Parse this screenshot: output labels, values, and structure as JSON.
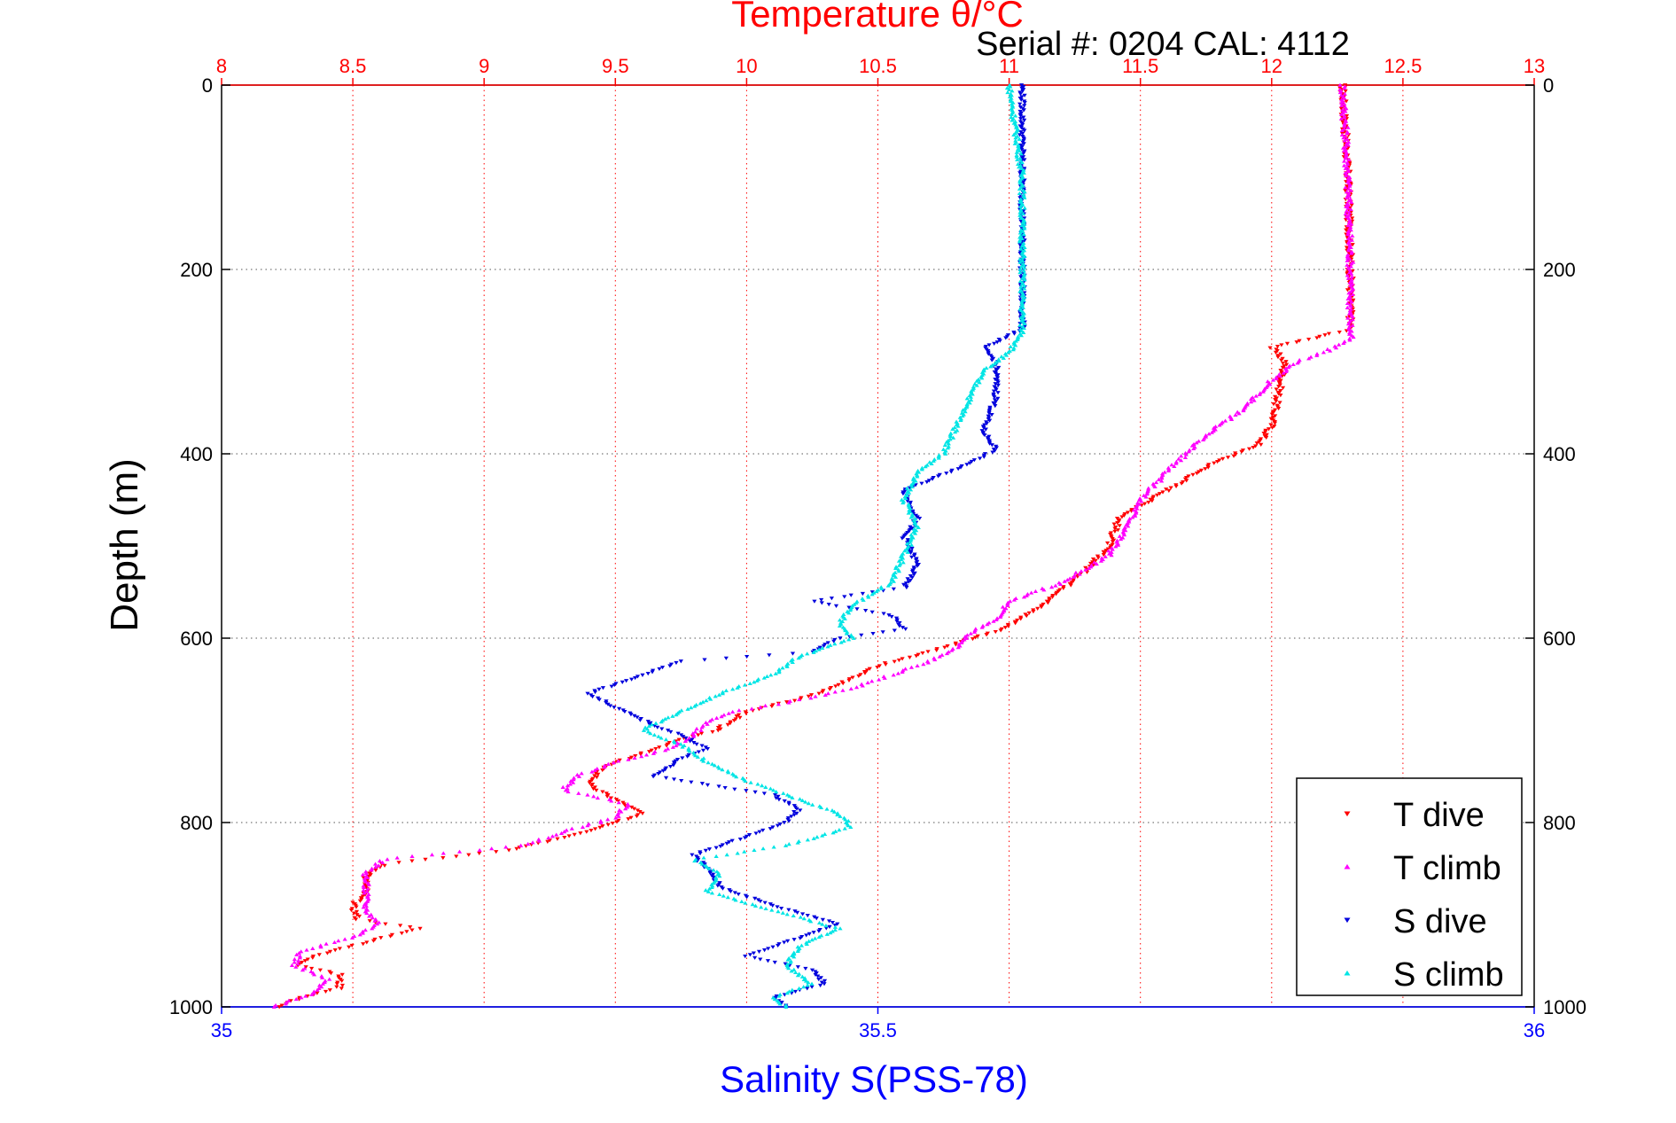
{
  "colors": {
    "temperature_axis": "#ff0000",
    "salinity_axis": "#0000ff",
    "t_dive": "#ff0000",
    "t_climb": "#ff00ff",
    "s_dive": "#0000dd",
    "s_climb": "#00e5e5",
    "grid": "#555555"
  },
  "chart_data": {
    "type": "scatter",
    "title": "Temperature θ/°C",
    "subtitle": "Serial #: 0204  CAL: 4112",
    "xlabel_top": "Temperature θ/°C",
    "xlabel_bottom": "Salinity S(PSS-78)",
    "ylabel": "Depth (m)",
    "grid": true,
    "legend_position": "bottom-right",
    "x_top": {
      "label": "Temperature θ/°C",
      "range": [
        8,
        13
      ],
      "ticks": [
        "8",
        "8.5",
        "9",
        "9.5",
        "10",
        "10.5",
        "11",
        "11.5",
        "12",
        "12.5",
        "13"
      ]
    },
    "x_bottom": {
      "label": "Salinity S(PSS-78)",
      "range": [
        35,
        36
      ],
      "ticks": [
        "35",
        "35.5",
        "36"
      ]
    },
    "y": {
      "label": "Depth (m)",
      "range": [
        0,
        1000
      ],
      "reversed": true,
      "ticks": [
        "0",
        "200",
        "400",
        "600",
        "800",
        "1000"
      ]
    },
    "series": [
      {
        "name": "T dive",
        "axis": "temperature",
        "marker": "triangle-down",
        "color": "#ff0000",
        "points": [
          [
            0,
            12.27
          ],
          [
            100,
            12.29
          ],
          [
            200,
            12.3
          ],
          [
            265,
            12.3
          ],
          [
            285,
            12.0
          ],
          [
            300,
            12.05
          ],
          [
            330,
            12.03
          ],
          [
            370,
            12.0
          ],
          [
            390,
            11.95
          ],
          [
            410,
            11.78
          ],
          [
            440,
            11.6
          ],
          [
            470,
            11.42
          ],
          [
            500,
            11.38
          ],
          [
            530,
            11.28
          ],
          [
            560,
            11.15
          ],
          [
            590,
            10.98
          ],
          [
            610,
            10.75
          ],
          [
            630,
            10.5
          ],
          [
            660,
            10.28
          ],
          [
            680,
            10.0
          ],
          [
            700,
            9.88
          ],
          [
            710,
            9.75
          ],
          [
            720,
            9.65
          ],
          [
            740,
            9.45
          ],
          [
            760,
            9.4
          ],
          [
            775,
            9.5
          ],
          [
            790,
            9.6
          ],
          [
            810,
            9.4
          ],
          [
            830,
            9.1
          ],
          [
            845,
            8.62
          ],
          [
            860,
            8.55
          ],
          [
            875,
            8.55
          ],
          [
            890,
            8.5
          ],
          [
            905,
            8.52
          ],
          [
            915,
            8.75
          ],
          [
            930,
            8.55
          ],
          [
            945,
            8.35
          ],
          [
            955,
            8.3
          ],
          [
            965,
            8.45
          ],
          [
            980,
            8.45
          ],
          [
            990,
            8.3
          ],
          [
            1000,
            8.22
          ]
        ]
      },
      {
        "name": "T climb",
        "axis": "temperature",
        "marker": "triangle-up",
        "color": "#ff00ff",
        "points": [
          [
            0,
            12.27
          ],
          [
            100,
            12.29
          ],
          [
            200,
            12.3
          ],
          [
            275,
            12.3
          ],
          [
            290,
            12.2
          ],
          [
            300,
            12.1
          ],
          [
            320,
            12.0
          ],
          [
            350,
            11.9
          ],
          [
            380,
            11.75
          ],
          [
            420,
            11.6
          ],
          [
            450,
            11.5
          ],
          [
            480,
            11.45
          ],
          [
            510,
            11.38
          ],
          [
            540,
            11.2
          ],
          [
            560,
            11.0
          ],
          [
            580,
            10.95
          ],
          [
            595,
            10.85
          ],
          [
            610,
            10.8
          ],
          [
            625,
            10.7
          ],
          [
            640,
            10.55
          ],
          [
            655,
            10.4
          ],
          [
            670,
            10.15
          ],
          [
            680,
            9.95
          ],
          [
            690,
            9.85
          ],
          [
            705,
            9.8
          ],
          [
            720,
            9.7
          ],
          [
            735,
            9.5
          ],
          [
            750,
            9.35
          ],
          [
            765,
            9.3
          ],
          [
            780,
            9.55
          ],
          [
            795,
            9.5
          ],
          [
            810,
            9.3
          ],
          [
            825,
            9.15
          ],
          [
            840,
            8.62
          ],
          [
            855,
            8.55
          ],
          [
            875,
            8.55
          ],
          [
            895,
            8.55
          ],
          [
            910,
            8.6
          ],
          [
            925,
            8.5
          ],
          [
            940,
            8.3
          ],
          [
            955,
            8.28
          ],
          [
            970,
            8.4
          ],
          [
            985,
            8.35
          ],
          [
            1000,
            8.2
          ]
        ]
      },
      {
        "name": "S dive",
        "axis": "salinity",
        "marker": "triangle-down",
        "color": "#0000dd",
        "points": [
          [
            0,
            35.61
          ],
          [
            100,
            35.61
          ],
          [
            200,
            35.61
          ],
          [
            265,
            35.61
          ],
          [
            285,
            35.58
          ],
          [
            300,
            35.59
          ],
          [
            340,
            35.59
          ],
          [
            375,
            35.58
          ],
          [
            395,
            35.59
          ],
          [
            410,
            35.57
          ],
          [
            440,
            35.52
          ],
          [
            470,
            35.53
          ],
          [
            490,
            35.52
          ],
          [
            520,
            35.53
          ],
          [
            545,
            35.52
          ],
          [
            560,
            35.45
          ],
          [
            575,
            35.51
          ],
          [
            590,
            35.52
          ],
          [
            600,
            35.47
          ],
          [
            615,
            35.45
          ],
          [
            625,
            35.35
          ],
          [
            640,
            35.32
          ],
          [
            660,
            35.28
          ],
          [
            675,
            35.3
          ],
          [
            695,
            35.33
          ],
          [
            705,
            35.35
          ],
          [
            720,
            35.37
          ],
          [
            730,
            35.35
          ],
          [
            750,
            35.33
          ],
          [
            770,
            35.42
          ],
          [
            785,
            35.44
          ],
          [
            800,
            35.43
          ],
          [
            815,
            35.4
          ],
          [
            835,
            35.36
          ],
          [
            850,
            35.37
          ],
          [
            870,
            35.38
          ],
          [
            890,
            35.42
          ],
          [
            910,
            35.47
          ],
          [
            930,
            35.43
          ],
          [
            945,
            35.4
          ],
          [
            960,
            35.45
          ],
          [
            975,
            35.46
          ],
          [
            990,
            35.42
          ],
          [
            1000,
            35.43
          ]
        ]
      },
      {
        "name": "S climb",
        "axis": "salinity",
        "marker": "triangle-up",
        "color": "#00e5e5",
        "points": [
          [
            0,
            35.6
          ],
          [
            100,
            35.61
          ],
          [
            200,
            35.61
          ],
          [
            270,
            35.61
          ],
          [
            290,
            35.6
          ],
          [
            310,
            35.58
          ],
          [
            340,
            35.57
          ],
          [
            370,
            35.56
          ],
          [
            400,
            35.55
          ],
          [
            420,
            35.53
          ],
          [
            450,
            35.52
          ],
          [
            480,
            35.53
          ],
          [
            510,
            35.52
          ],
          [
            540,
            35.51
          ],
          [
            565,
            35.48
          ],
          [
            585,
            35.47
          ],
          [
            600,
            35.48
          ],
          [
            620,
            35.44
          ],
          [
            640,
            35.42
          ],
          [
            660,
            35.38
          ],
          [
            680,
            35.35
          ],
          [
            700,
            35.32
          ],
          [
            715,
            35.35
          ],
          [
            735,
            35.37
          ],
          [
            755,
            35.4
          ],
          [
            770,
            35.43
          ],
          [
            790,
            35.47
          ],
          [
            805,
            35.48
          ],
          [
            825,
            35.43
          ],
          [
            840,
            35.36
          ],
          [
            855,
            35.38
          ],
          [
            875,
            35.37
          ],
          [
            895,
            35.42
          ],
          [
            915,
            35.47
          ],
          [
            935,
            35.44
          ],
          [
            955,
            35.43
          ],
          [
            975,
            35.45
          ],
          [
            990,
            35.42
          ],
          [
            1000,
            35.43
          ]
        ]
      }
    ]
  }
}
